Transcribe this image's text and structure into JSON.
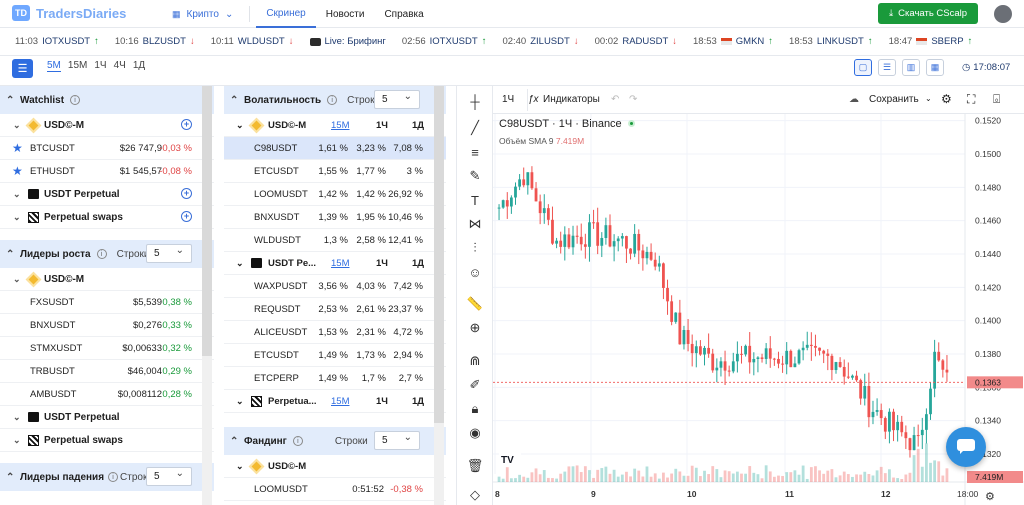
{
  "brand": {
    "mark": "TD",
    "name": "TradersDiaries"
  },
  "nav": {
    "crypto": "Крипто",
    "screener": "Скринер",
    "news": "Новости",
    "help": "Справка"
  },
  "download": "Скачать CScalp",
  "ticker": [
    {
      "time": "11:03",
      "sym": "IOTXUSDT",
      "dir": "up"
    },
    {
      "time": "10:16",
      "sym": "BLZUSDT",
      "dir": "down"
    },
    {
      "time": "10:11",
      "sym": "WLDUSDT",
      "dir": "down"
    },
    {
      "time": "",
      "sym": "Live: Брифинг",
      "dir": "live"
    },
    {
      "time": "02:56",
      "sym": "IOTXUSDT",
      "dir": "up"
    },
    {
      "time": "02:40",
      "sym": "ZILUSDT",
      "dir": "down"
    },
    {
      "time": "00:02",
      "sym": "RADUSDT",
      "dir": "down"
    },
    {
      "time": "18:53",
      "sym": "GMKN",
      "dir": "up",
      "flag": true
    },
    {
      "time": "18:53",
      "sym": "LINKUSDT",
      "dir": "up"
    },
    {
      "time": "18:47",
      "sym": "SBERP",
      "dir": "up",
      "flag": true
    }
  ],
  "timeframes": [
    "5M",
    "15M",
    "1Ч",
    "4Ч",
    "1Д"
  ],
  "clock": "17:08:07",
  "watchlist": {
    "title": "Watchlist",
    "group1": "USD©-M",
    "rows": [
      {
        "sym": "BTCUSDT",
        "price": "$26 747,9",
        "chg": "-0,03 %"
      },
      {
        "sym": "ETHUSDT",
        "price": "$1 545,57",
        "chg": "-0,08 %"
      }
    ],
    "group2": "USDT Perpetual",
    "group3": "Perpetual swaps"
  },
  "gainers": {
    "title": "Лидеры роста",
    "rows_label": "Строки",
    "rows_value": "5",
    "group1": "USD©-M",
    "rows": [
      {
        "sym": "FXSUSDT",
        "price": "$5,539",
        "chg": "0,38 %"
      },
      {
        "sym": "BNXUSDT",
        "price": "$0,276",
        "chg": "0,33 %"
      },
      {
        "sym": "STMXUSDT",
        "price": "$0,00633",
        "chg": "0,32 %"
      },
      {
        "sym": "TRBUSDT",
        "price": "$46,004",
        "chg": "0,29 %"
      },
      {
        "sym": "AMBUSDT",
        "price": "$0,008112",
        "chg": "0,28 %"
      }
    ],
    "group2": "USDT Perpetual",
    "group3": "Perpetual swaps"
  },
  "losers": {
    "title": "Лидеры падения",
    "rows_label": "Строки",
    "rows_value": "5"
  },
  "volatility": {
    "title": "Волатильность",
    "rows_label": "Строки",
    "rows_value": "5",
    "g1": {
      "name": "USD©-M",
      "h1": "15M",
      "h2": "1Ч",
      "h3": "1Д"
    },
    "rows1": [
      {
        "sym": "C98USDT",
        "a": "1,61 %",
        "b": "3,23 %",
        "c": "7,08 %"
      },
      {
        "sym": "ETCUSDT",
        "a": "1,55 %",
        "b": "1,77 %",
        "c": "3 %"
      },
      {
        "sym": "LOOMUSDT",
        "a": "1,42 %",
        "b": "1,42 %",
        "c": "26,92 %"
      },
      {
        "sym": "BNXUSDT",
        "a": "1,39 %",
        "b": "1,95 %",
        "c": "10,46 %"
      },
      {
        "sym": "WLDUSDT",
        "a": "1,3 %",
        "b": "2,58 %",
        "c": "12,41 %"
      }
    ],
    "g2": {
      "name": "USDT Pe...",
      "h1": "15M",
      "h2": "1Ч",
      "h3": "1Д"
    },
    "rows2": [
      {
        "sym": "WAXPUSDT",
        "a": "3,56 %",
        "b": "4,03 %",
        "c": "7,42 %"
      },
      {
        "sym": "REQUSDT",
        "a": "2,53 %",
        "b": "2,61 %",
        "c": "23,37 %"
      },
      {
        "sym": "ALICEUSDT",
        "a": "1,53 %",
        "b": "2,31 %",
        "c": "4,72 %"
      },
      {
        "sym": "ETCUSDT",
        "a": "1,49 %",
        "b": "1,73 %",
        "c": "2,94 %"
      },
      {
        "sym": "ETCPERP",
        "a": "1,49 %",
        "b": "1,7 %",
        "c": "2,7 %"
      }
    ],
    "g3": {
      "name": "Perpetua...",
      "h1": "15M",
      "h2": "1Ч",
      "h3": "1Д"
    }
  },
  "funding": {
    "title": "Фандинг",
    "rows_label": "Строки",
    "rows_value": "5",
    "group1": "USD©-M",
    "rows": [
      {
        "sym": "LOOMUSDT",
        "time": "0:51:52",
        "chg": "-0,38 %"
      }
    ]
  },
  "chart": {
    "interval": "1Ч",
    "indicators": "Индикаторы",
    "save": "Сохранить",
    "legend": "C98USDT · 1Ч · Binance",
    "vol_label": "Объём SMA 9",
    "vol_value": "7.419M",
    "price_tag": "0.1363",
    "vol_tag": "7.419M",
    "watermark": "TV"
  },
  "chart_data": {
    "type": "candlestick",
    "yticks": [
      "0.1520",
      "0.1500",
      "0.1480",
      "0.1460",
      "0.1440",
      "0.1420",
      "0.1400",
      "0.1380",
      "0.1360",
      "0.1340",
      "0.1320"
    ],
    "xticks": [
      "8",
      "9",
      "10",
      "11",
      "12",
      "18:00"
    ],
    "ylim": [
      0.1308,
      0.1524
    ],
    "last": 0.1363,
    "colors": {
      "up": "#26a69a",
      "down": "#ef5350"
    }
  }
}
